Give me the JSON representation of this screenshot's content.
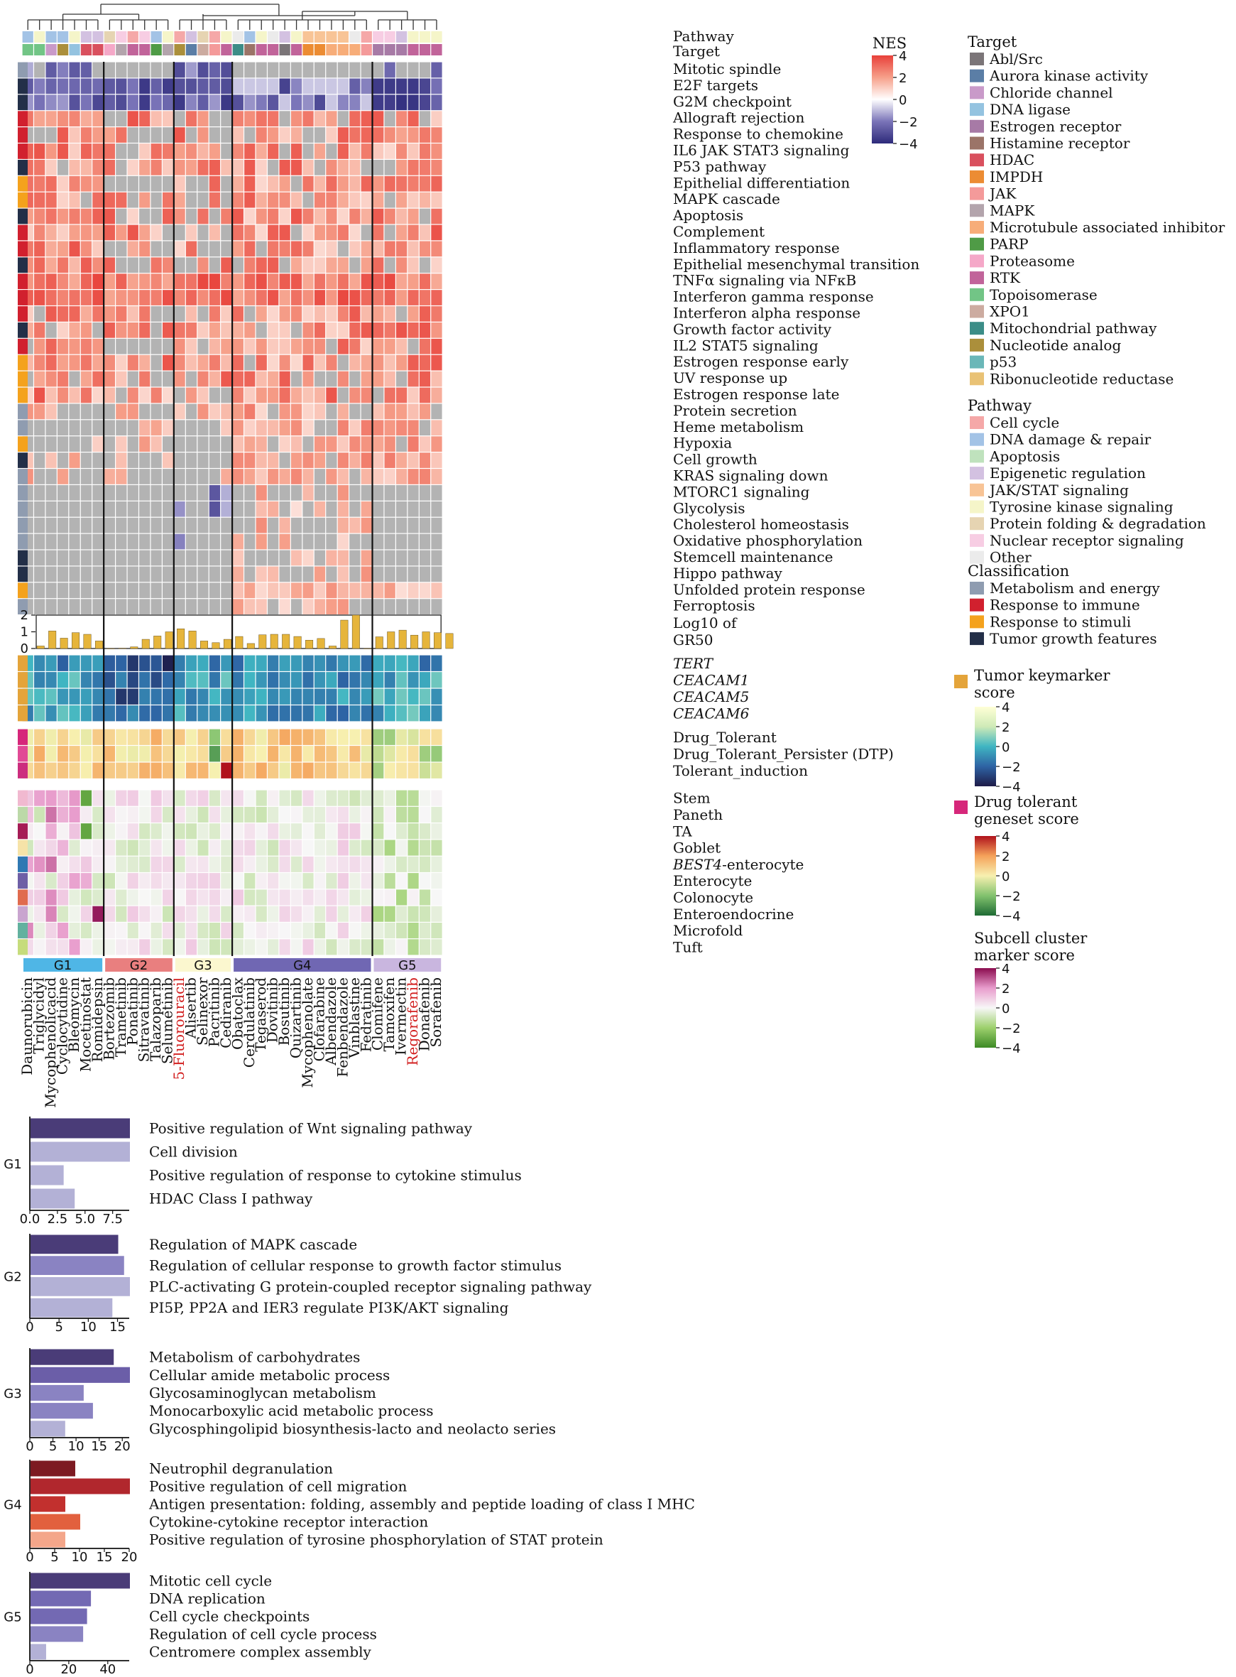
{
  "chart_data": {
    "type": "heatmap",
    "drugs": [
      "Daunorubicin",
      "Triglycidyl",
      "Mycophenolicacid",
      "Cyclocytidine",
      "Bleomycin",
      "Mocetinostat",
      "Romidepsin",
      "Bortezomib",
      "Trametinib",
      "Ponatinib",
      "Sitravatinib",
      "Talazoparib",
      "Selumetinib",
      "5-Fluorouracil",
      "Alisertib",
      "Selinexor",
      "Pacritinib",
      "Cediranib",
      "Obatoclax",
      "Cerdulatinib",
      "Tegaserod",
      "Dovitinib",
      "Bosutinib",
      "Quizartinib",
      "Mycophenolate",
      "Clofarabine",
      "Albendazole",
      "Fenbendazole",
      "Vinblastine",
      "Fedratinib",
      "Clomifene",
      "Tamoxifen",
      "Ivermectin",
      "Regorafenib",
      "Donafenib",
      "Sorafenib"
    ],
    "highlighted_drugs": [
      "5-Fluorouracil",
      "Regorafenib"
    ],
    "groups": [
      {
        "name": "G1",
        "count": 7,
        "color": "#4fb6e6"
      },
      {
        "name": "G2",
        "count": 6,
        "color": "#e97f7f"
      },
      {
        "name": "G3",
        "count": 5,
        "color": "#fbf7cf"
      },
      {
        "name": "G4",
        "count": 12,
        "color": "#7067b3"
      },
      {
        "name": "G5",
        "count": 6,
        "color": "#c9b6df"
      }
    ],
    "annotation_rows": [
      "Pathway",
      "Target"
    ],
    "pathways": [
      "Mitotic spindle",
      "E2F targets",
      "G2M checkpoint",
      "Allograft rejection",
      "Response to chemokine",
      "IL6 JAK STAT3 signaling",
      "P53 pathway",
      "Epithelial differentiation",
      "MAPK cascade",
      "Apoptosis",
      "Complement",
      "Inflammatory response",
      "Epithelial mesenchymal transition",
      "TNFα signaling via NFκB",
      "Interferon gamma response",
      "Interferon alpha response",
      "Growth factor activity",
      "IL2 STAT5 signaling",
      "Estrogen response early",
      "UV response up",
      "Estrogen response late",
      "Protein secretion",
      "Heme metabolism",
      "Hypoxia",
      "Cell growth",
      "KRAS signaling down",
      "MTORC1 signaling",
      "Glycolysis",
      "Cholesterol homeostasis",
      "Oxidative phosphorylation",
      "Stemcell maintenance",
      "Hippo pathway",
      "Unfolded protein response",
      "Ferroptosis"
    ],
    "pathway_classes": [
      "Metabolism and energy",
      "Tumor growth features",
      "Tumor growth features",
      "Response to immune",
      "Response to immune",
      "Response to immune",
      "Tumor growth features",
      "Response to stimuli",
      "Response to stimuli",
      "Tumor growth features",
      "Response to immune",
      "Response to immune",
      "Tumor growth features",
      "Response to immune",
      "Response to immune",
      "Response to immune",
      "Tumor growth features",
      "Response to immune",
      "Response to stimuli",
      "Response to stimuli",
      "Response to stimuli",
      "Metabolism and energy",
      "Metabolism and energy",
      "Response to stimuli",
      "Tumor growth features",
      "Metabolism and energy",
      "Metabolism and energy",
      "Metabolism and energy",
      "Metabolism and energy",
      "Metabolism and energy",
      "Tumor growth features",
      "Tumor growth features",
      "Response to stimuli",
      "Metabolism and energy"
    ],
    "gr50": {
      "label1": "Log10 of",
      "label2": "GR50",
      "ylim": [
        0,
        2
      ],
      "ticks": [
        0,
        1,
        2
      ],
      "values": [
        0.15,
        1.05,
        0.62,
        0.95,
        0.85,
        0.45,
        0.0,
        0.02,
        0.1,
        0.55,
        0.75,
        1.0,
        1.18,
        1.05,
        0.45,
        0.35,
        0.55,
        0.72,
        0.3,
        0.82,
        0.85,
        0.85,
        0.72,
        0.5,
        0.6,
        0.15,
        1.7,
        2.0,
        0.0,
        0.7,
        1.0,
        1.1,
        0.8,
        1.0,
        0.95,
        0.9
      ]
    },
    "keymarker_rows": [
      "TERT",
      "CEACAM1",
      "CEACAM5",
      "CEACAM6"
    ],
    "drug_tolerant_rows": [
      "Drug_Tolerant",
      "Drug_Tolerant_Persister (DTP)",
      "Tolerant_induction"
    ],
    "subcell_rows": [
      "Stem",
      "Paneth",
      "TA",
      "Goblet",
      "BEST4-enterocyte",
      "Enterocyte",
      "Colonocyte",
      "Enteroendocrine",
      "Microfold",
      "Tuft"
    ],
    "subcell_italic_prefix": {
      "BEST4-enterocyte": "BEST4"
    },
    "nes_legend": {
      "title": "NES",
      "ticks": [
        4,
        2,
        0,
        -2,
        -4
      ]
    },
    "keymarker_legend": {
      "title": [
        "Tumor keymarker",
        "score"
      ],
      "ticks": [
        4,
        2,
        0,
        -2,
        -4
      ]
    },
    "dt_legend": {
      "title": [
        "Drug tolerant",
        "geneset score"
      ],
      "ticks": [
        4,
        2,
        0,
        -2,
        -4
      ]
    },
    "subcell_legend": {
      "title": [
        "Subcell cluster",
        "marker score"
      ],
      "ticks": [
        4,
        2,
        0,
        -2,
        -4
      ]
    },
    "target_legend": {
      "title": "Target",
      "items": [
        {
          "label": "Abl/Src",
          "color": "#7b7578"
        },
        {
          "label": "Aurora kinase activity",
          "color": "#5b7ea6"
        },
        {
          "label": "Chloride channel",
          "color": "#c99ac9"
        },
        {
          "label": "DNA ligase",
          "color": "#94c3e0"
        },
        {
          "label": "Estrogen receptor",
          "color": "#a77aa6"
        },
        {
          "label": "Histamine receptor",
          "color": "#9b7468"
        },
        {
          "label": "HDAC",
          "color": "#d9505e"
        },
        {
          "label": "IMPDH",
          "color": "#ec8c33"
        },
        {
          "label": "JAK",
          "color": "#f49a9a"
        },
        {
          "label": "MAPK",
          "color": "#b3a4ac"
        },
        {
          "label": "Microtubule associated inhibitor",
          "color": "#f7ad79"
        },
        {
          "label": "PARP",
          "color": "#4f9b46"
        },
        {
          "label": "Proteasome",
          "color": "#f5a8c8"
        },
        {
          "label": "RTK",
          "color": "#c1649a"
        },
        {
          "label": "Topoisomerase",
          "color": "#72c586"
        },
        {
          "label": "XPO1",
          "color": "#ccaba0"
        },
        {
          "label": "Mitochondrial pathway",
          "color": "#3c8d87"
        },
        {
          "label": "Nucleotide analog",
          "color": "#ab8f3b"
        },
        {
          "label": "p53",
          "color": "#6ab7b8"
        },
        {
          "label": "Ribonucleotide reductase",
          "color": "#e9c275"
        }
      ]
    },
    "pathway_legend": {
      "title": "Pathway",
      "items": [
        {
          "label": "Cell cycle",
          "color": "#f5a8a8"
        },
        {
          "label": "DNA damage & repair",
          "color": "#a3c3e6"
        },
        {
          "label": "Apoptosis",
          "color": "#bfe2bd"
        },
        {
          "label": "Epigenetic regulation",
          "color": "#d3c1e1"
        },
        {
          "label": "JAK/STAT signaling",
          "color": "#f8c496"
        },
        {
          "label": "Tyrosine kinase signaling",
          "color": "#f5f5c9"
        },
        {
          "label": "Protein folding & degradation",
          "color": "#e6d4b2"
        },
        {
          "label": "Nuclear receptor signaling",
          "color": "#f7cde3"
        },
        {
          "label": "Other",
          "color": "#ebebeb"
        }
      ]
    },
    "class_legend": {
      "title": "Classification",
      "items": [
        {
          "label": "Metabolism and energy",
          "color": "#8f9cb0"
        },
        {
          "label": "Response to immune",
          "color": "#d1202e"
        },
        {
          "label": "Response to stimuli",
          "color": "#f4a21d"
        },
        {
          "label": "Tumor growth features",
          "color": "#232f48"
        }
      ]
    },
    "enrichment": [
      {
        "group": "G1",
        "xticks": [
          "0.0",
          "2.5",
          "5.0",
          "7.5"
        ],
        "xmax": 9,
        "terms": [
          {
            "label": "Positive regulation of Wnt signaling pathway",
            "value": 9,
            "color": "#4a3c78"
          },
          {
            "label": "Cell division",
            "value": 9,
            "color": "#b3b1d6"
          },
          {
            "label": "Positive regulation of response to cytokine stimulus",
            "value": 3,
            "color": "#b3b1d6"
          },
          {
            "label": "HDAC Class I pathway",
            "value": 4,
            "color": "#b3b1d6"
          }
        ]
      },
      {
        "group": "G2",
        "xticks": [
          "0",
          "5",
          "10",
          "15"
        ],
        "xmax": 17,
        "terms": [
          {
            "label": "Regulation of MAPK cascade",
            "value": 15,
            "color": "#4a3c78"
          },
          {
            "label": "Regulation of cellular response to growth factor stimulus",
            "value": 16,
            "color": "#8a83c2"
          },
          {
            "label": "PLC-activating G protein-coupled receptor signaling pathway",
            "value": 17,
            "color": "#b3b1d6"
          },
          {
            "label": "PI5P, PP2A and IER3 regulate PI3K/AKT signaling",
            "value": 14,
            "color": "#b3b1d6"
          }
        ]
      },
      {
        "group": "G3",
        "xticks": [
          "0",
          "5",
          "10",
          "15",
          "20"
        ],
        "xmax": 21.5,
        "terms": [
          {
            "label": "Metabolism of carbohydrates",
            "value": 18,
            "color": "#4a3c78"
          },
          {
            "label": "Cellular amide metabolic process",
            "value": 21.5,
            "color": "#6b5ea8"
          },
          {
            "label": "Glycosaminoglycan metabolism",
            "value": 11.5,
            "color": "#8a83c2"
          },
          {
            "label": "Monocarboxylic acid metabolic process",
            "value": 13.5,
            "color": "#8a83c2"
          },
          {
            "label": "Glycosphingolipid biosynthesis-lacto and neolacto series",
            "value": 7.5,
            "color": "#b3b1d6"
          }
        ]
      },
      {
        "group": "G4",
        "xticks": [
          "0",
          "5",
          "10",
          "15",
          "20"
        ],
        "xmax": 20,
        "terms": [
          {
            "label": "Neutrophil degranulation",
            "value": 9,
            "color": "#7d1a22"
          },
          {
            "label": "Positive regulation of cell migration",
            "value": 20,
            "color": "#b1272d"
          },
          {
            "label": "Antigen presentation: folding, assembly and peptide loading of class I MHC",
            "value": 7,
            "color": "#c2302e"
          },
          {
            "label": "Cytokine-cytokine receptor interaction",
            "value": 10,
            "color": "#e2603e"
          },
          {
            "label": "Positive regulation of tyrosine phosphorylation of STAT protein",
            "value": 7,
            "color": "#f4a68a"
          }
        ]
      },
      {
        "group": "G5",
        "xticks": [
          "0",
          "20",
          "40"
        ],
        "xmax": 51,
        "terms": [
          {
            "label": "Mitotic cell cycle",
            "value": 51,
            "color": "#4a3c78"
          },
          {
            "label": "DNA replication",
            "value": 31,
            "color": "#7369b3"
          },
          {
            "label": "Cell cycle checkpoints",
            "value": 29,
            "color": "#7369b3"
          },
          {
            "label": "Regulation of cell cycle process",
            "value": 27,
            "color": "#8a83c2"
          },
          {
            "label": "Centromere complex assembly",
            "value": 8,
            "color": "#b3b1d6"
          }
        ]
      }
    ]
  }
}
